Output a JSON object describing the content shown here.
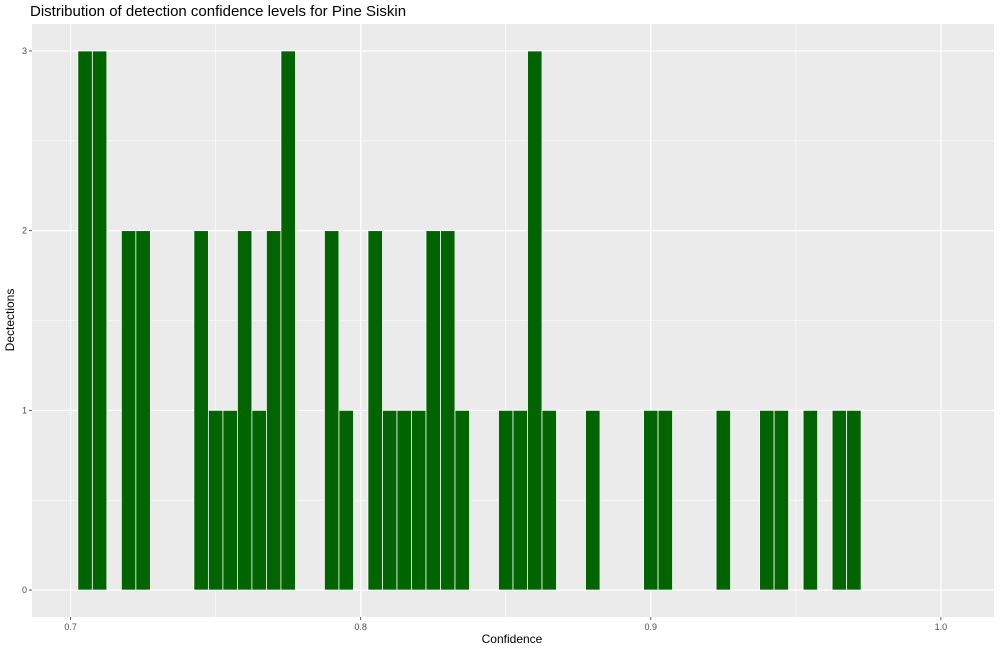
{
  "chart_data": {
    "type": "bar",
    "title": "Distribution of detection confidence levels for Pine Siskin",
    "xlabel": "Confidence",
    "ylabel": "Dectections",
    "xlim": [
      0.6867,
      1.0183
    ],
    "ylim": [
      -0.15,
      3.15
    ],
    "x_ticks": [
      "0.7",
      "0.8",
      "0.9",
      "1.0"
    ],
    "y_ticks": [
      "0",
      "1",
      "2",
      "3"
    ],
    "bin_width": 0.005,
    "grid": true,
    "bar_color": "#006400",
    "panel_background": "#EBEBEB",
    "bins": [
      {
        "x": 0.705,
        "count": 3
      },
      {
        "x": 0.71,
        "count": 3
      },
      {
        "x": 0.72,
        "count": 2
      },
      {
        "x": 0.725,
        "count": 2
      },
      {
        "x": 0.745,
        "count": 2
      },
      {
        "x": 0.75,
        "count": 1
      },
      {
        "x": 0.755,
        "count": 1
      },
      {
        "x": 0.76,
        "count": 2
      },
      {
        "x": 0.765,
        "count": 1
      },
      {
        "x": 0.77,
        "count": 2
      },
      {
        "x": 0.775,
        "count": 3
      },
      {
        "x": 0.79,
        "count": 2
      },
      {
        "x": 0.795,
        "count": 1
      },
      {
        "x": 0.805,
        "count": 2
      },
      {
        "x": 0.81,
        "count": 1
      },
      {
        "x": 0.815,
        "count": 1
      },
      {
        "x": 0.82,
        "count": 1
      },
      {
        "x": 0.825,
        "count": 2
      },
      {
        "x": 0.83,
        "count": 2
      },
      {
        "x": 0.835,
        "count": 1
      },
      {
        "x": 0.85,
        "count": 1
      },
      {
        "x": 0.855,
        "count": 1
      },
      {
        "x": 0.86,
        "count": 3
      },
      {
        "x": 0.865,
        "count": 1
      },
      {
        "x": 0.88,
        "count": 1
      },
      {
        "x": 0.9,
        "count": 1
      },
      {
        "x": 0.905,
        "count": 1
      },
      {
        "x": 0.925,
        "count": 1
      },
      {
        "x": 0.94,
        "count": 1
      },
      {
        "x": 0.945,
        "count": 1
      },
      {
        "x": 0.955,
        "count": 1
      },
      {
        "x": 0.965,
        "count": 1
      },
      {
        "x": 0.97,
        "count": 1
      }
    ]
  }
}
